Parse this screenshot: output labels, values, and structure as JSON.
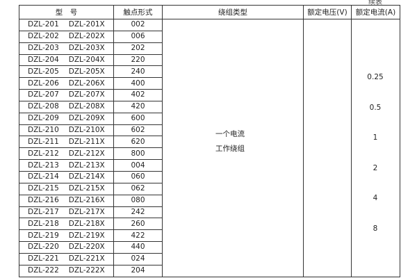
{
  "continued_label": "续表",
  "headers": [
    "型　号",
    "触点形式",
    "绕组类型",
    "额定电压(V)",
    "额定电流(A)"
  ],
  "rows": [
    [
      "DZL-201",
      "DZL-201X",
      "002"
    ],
    [
      "DZL-202",
      "DZL-202X",
      "006"
    ],
    [
      "DZL-203",
      "DZL-203X",
      "202"
    ],
    [
      "DZL-204",
      "DZL-204X",
      "220"
    ],
    [
      "DZL-205",
      "DZL-205X",
      "240"
    ],
    [
      "DZL-206",
      "DZL-206X",
      "400"
    ],
    [
      "DZL-207",
      "DZL-207X",
      "402"
    ],
    [
      "DZL-208",
      "DZL-208X",
      "420"
    ],
    [
      "DZL-209",
      "DZL-209X",
      "600"
    ],
    [
      "DZL-210",
      "DZL-210X",
      "602"
    ],
    [
      "DZL-211",
      "DZL-211X",
      "620"
    ],
    [
      "DZL-212",
      "DZL-212X",
      "800"
    ],
    [
      "DZL-213",
      "DZL-213X",
      "004"
    ],
    [
      "DZL-214",
      "DZL-214X",
      "060"
    ],
    [
      "DZL-215",
      "DZL-215X",
      "062"
    ],
    [
      "DZL-216",
      "DZL-216X",
      "080"
    ],
    [
      "DZL-217",
      "DZL-217X",
      "242"
    ],
    [
      "DZL-218",
      "DZL-218X",
      "260"
    ],
    [
      "DZL-219",
      "DZL-219X",
      "422"
    ],
    [
      "DZL-220",
      "DZL-220X",
      "440"
    ],
    [
      "DZL-221",
      "DZL-221X",
      "024"
    ],
    [
      "DZL-222",
      "DZL-222X",
      "204"
    ]
  ],
  "winding_type": [
    "一个电流",
    "工作绕组"
  ],
  "rated_currents": [
    "0.25",
    "0.5",
    "1",
    "2",
    "4",
    "8"
  ]
}
